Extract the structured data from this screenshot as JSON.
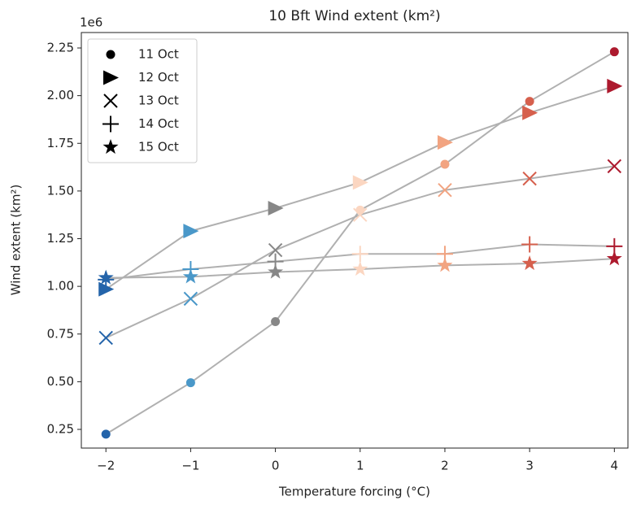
{
  "chart_data": {
    "type": "line-scatter",
    "title": "10 Bft Wind extent (km²)",
    "x_label": "Temperature forcing (°C)",
    "y_label": "Wind extent (km²)",
    "y_offset_label": "1e6",
    "x": [
      -2,
      -1,
      0,
      1,
      2,
      3,
      4
    ],
    "point_colors": [
      "#2464aa",
      "#4a98c9",
      "#878787",
      "#fbd6c1",
      "#f2a481",
      "#d6604d",
      "#ad1a2e"
    ],
    "line_color": "#b0b0b0",
    "series": [
      {
        "name": "11 Oct",
        "marker": "o",
        "values": [
          0.225,
          0.495,
          0.815,
          1.4,
          1.64,
          1.97,
          2.23
        ]
      },
      {
        "name": "12 Oct",
        "marker": ">",
        "values": [
          0.985,
          1.29,
          1.41,
          1.545,
          1.755,
          1.91,
          2.05
        ]
      },
      {
        "name": "13 Oct",
        "marker": "x",
        "values": [
          0.73,
          0.935,
          1.19,
          1.375,
          1.505,
          1.565,
          1.63
        ]
      },
      {
        "name": "14 Oct",
        "marker": "+",
        "values": [
          1.035,
          1.09,
          1.13,
          1.17,
          1.17,
          1.22,
          1.21
        ]
      },
      {
        "name": "15 Oct",
        "marker": "*",
        "values": [
          1.045,
          1.05,
          1.075,
          1.09,
          1.11,
          1.12,
          1.145
        ]
      }
    ],
    "xlim": [
      -2.29,
      4.16
    ],
    "ylim": [
      0.152,
      2.331
    ],
    "xticks": [
      {
        "value": -2,
        "label": "−2"
      },
      {
        "value": -1,
        "label": "−1"
      },
      0,
      1,
      2,
      3,
      4
    ],
    "yticks": [
      {
        "value": 0.25,
        "label": "0.25"
      },
      {
        "value": 0.5,
        "label": "0.50"
      },
      {
        "value": 0.75,
        "label": "0.75"
      },
      {
        "value": 1,
        "label": "1.00"
      },
      {
        "value": 1.25,
        "label": "1.25"
      },
      {
        "value": 1.5,
        "label": "1.50"
      },
      {
        "value": 1.75,
        "label": "1.75"
      },
      {
        "value": 2,
        "label": "2.00"
      },
      {
        "value": 2.25,
        "label": "2.25"
      }
    ],
    "legend": "upper left"
  }
}
